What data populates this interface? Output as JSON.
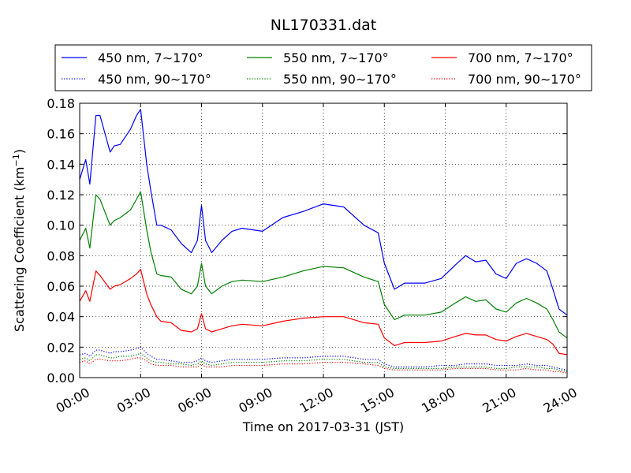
{
  "chart_data": {
    "type": "line",
    "title": "NL170331.dat",
    "xlabel": "Time on 2017-03-31 (JST)",
    "ylabel_main": "Scattering Coefficient (km",
    "ylabel_sup": "−1",
    "ylabel_end": ")",
    "xlim": [
      0,
      24
    ],
    "ylim": [
      0,
      0.18
    ],
    "x_ticks": [
      0,
      3,
      6,
      9,
      12,
      15,
      18,
      21,
      24
    ],
    "x_tick_labels": [
      "00:00",
      "03:00",
      "06:00",
      "09:00",
      "12:00",
      "15:00",
      "18:00",
      "21:00",
      "24:00"
    ],
    "y_ticks": [
      0,
      0.02,
      0.04,
      0.06,
      0.08,
      0.1,
      0.12,
      0.14,
      0.16,
      0.18
    ],
    "y_tick_labels": [
      "0.00",
      "0.02",
      "0.04",
      "0.06",
      "0.08",
      "0.10",
      "0.12",
      "0.14",
      "0.16",
      "0.18"
    ],
    "grid": true,
    "legend_position": "top, above plot",
    "x": [
      0,
      0.3,
      0.5,
      0.8,
      1.0,
      1.5,
      1.7,
      2.0,
      2.5,
      2.8,
      3.0,
      3.3,
      3.5,
      3.8,
      4.0,
      4.5,
      5.0,
      5.5,
      5.8,
      6.0,
      6.2,
      6.5,
      7.0,
      7.5,
      8.0,
      9.0,
      10.0,
      11.0,
      12.0,
      13.0,
      14.0,
      14.7,
      15.0,
      15.5,
      16.0,
      17.0,
      17.8,
      18.5,
      19.0,
      19.5,
      20.0,
      20.5,
      21.0,
      21.5,
      22.0,
      22.5,
      23.0,
      23.3,
      23.6,
      24.0
    ],
    "series": [
      {
        "name": "450 nm, 7∼170°",
        "color": "#0000ff",
        "dash": "solid",
        "values": [
          0.13,
          0.143,
          0.127,
          0.172,
          0.172,
          0.148,
          0.152,
          0.153,
          0.163,
          0.172,
          0.176,
          0.14,
          0.123,
          0.1,
          0.1,
          0.097,
          0.088,
          0.082,
          0.09,
          0.113,
          0.09,
          0.082,
          0.09,
          0.096,
          0.098,
          0.096,
          0.105,
          0.109,
          0.114,
          0.112,
          0.1,
          0.095,
          0.075,
          0.058,
          0.062,
          0.062,
          0.065,
          0.074,
          0.08,
          0.076,
          0.077,
          0.068,
          0.065,
          0.075,
          0.078,
          0.075,
          0.07,
          0.058,
          0.045,
          0.041
        ]
      },
      {
        "name": "550 nm, 7∼170°",
        "color": "#008000",
        "dash": "solid",
        "values": [
          0.09,
          0.098,
          0.085,
          0.12,
          0.117,
          0.1,
          0.103,
          0.105,
          0.11,
          0.117,
          0.122,
          0.097,
          0.083,
          0.068,
          0.067,
          0.066,
          0.058,
          0.055,
          0.06,
          0.075,
          0.06,
          0.055,
          0.06,
          0.063,
          0.064,
          0.063,
          0.066,
          0.07,
          0.073,
          0.072,
          0.066,
          0.063,
          0.048,
          0.038,
          0.041,
          0.041,
          0.043,
          0.049,
          0.053,
          0.05,
          0.051,
          0.045,
          0.043,
          0.049,
          0.052,
          0.049,
          0.045,
          0.038,
          0.03,
          0.026
        ]
      },
      {
        "name": "700 nm, 7∼170°",
        "color": "#ff0000",
        "dash": "solid",
        "values": [
          0.05,
          0.057,
          0.05,
          0.07,
          0.067,
          0.058,
          0.06,
          0.061,
          0.065,
          0.068,
          0.071,
          0.055,
          0.048,
          0.04,
          0.037,
          0.036,
          0.031,
          0.03,
          0.032,
          0.042,
          0.032,
          0.03,
          0.032,
          0.034,
          0.035,
          0.034,
          0.037,
          0.039,
          0.04,
          0.04,
          0.036,
          0.035,
          0.026,
          0.021,
          0.023,
          0.023,
          0.024,
          0.027,
          0.029,
          0.028,
          0.028,
          0.025,
          0.024,
          0.027,
          0.029,
          0.027,
          0.025,
          0.022,
          0.016,
          0.015
        ]
      },
      {
        "name": "450 nm, 90∼170°",
        "color": "#0000ff",
        "dash": "dotted",
        "values": [
          0.015,
          0.016,
          0.014,
          0.018,
          0.018,
          0.016,
          0.017,
          0.017,
          0.018,
          0.019,
          0.02,
          0.016,
          0.014,
          0.012,
          0.012,
          0.011,
          0.01,
          0.01,
          0.011,
          0.013,
          0.011,
          0.01,
          0.011,
          0.012,
          0.012,
          0.012,
          0.013,
          0.013,
          0.014,
          0.014,
          0.012,
          0.012,
          0.009,
          0.007,
          0.007,
          0.007,
          0.008,
          0.008,
          0.009,
          0.009,
          0.009,
          0.008,
          0.008,
          0.008,
          0.009,
          0.008,
          0.008,
          0.007,
          0.006,
          0.005
        ]
      },
      {
        "name": "550 nm, 90∼170°",
        "color": "#008000",
        "dash": "dotted",
        "values": [
          0.012,
          0.013,
          0.011,
          0.015,
          0.015,
          0.013,
          0.013,
          0.014,
          0.014,
          0.015,
          0.016,
          0.013,
          0.011,
          0.01,
          0.01,
          0.009,
          0.009,
          0.008,
          0.009,
          0.011,
          0.009,
          0.008,
          0.009,
          0.01,
          0.01,
          0.01,
          0.011,
          0.011,
          0.012,
          0.012,
          0.01,
          0.01,
          0.007,
          0.006,
          0.006,
          0.006,
          0.006,
          0.007,
          0.007,
          0.007,
          0.007,
          0.006,
          0.006,
          0.007,
          0.007,
          0.007,
          0.006,
          0.006,
          0.005,
          0.004
        ]
      },
      {
        "name": "700 nm, 90∼170°",
        "color": "#ff0000",
        "dash": "dotted",
        "values": [
          0.01,
          0.011,
          0.009,
          0.012,
          0.012,
          0.011,
          0.011,
          0.011,
          0.012,
          0.013,
          0.013,
          0.011,
          0.009,
          0.008,
          0.008,
          0.008,
          0.007,
          0.007,
          0.007,
          0.009,
          0.007,
          0.007,
          0.007,
          0.008,
          0.008,
          0.008,
          0.009,
          0.009,
          0.01,
          0.01,
          0.009,
          0.008,
          0.006,
          0.005,
          0.005,
          0.005,
          0.005,
          0.006,
          0.006,
          0.006,
          0.006,
          0.005,
          0.005,
          0.005,
          0.006,
          0.005,
          0.005,
          0.004,
          0.004,
          0.003
        ]
      }
    ],
    "legend_order": [
      0,
      1,
      2,
      3,
      4,
      5
    ]
  }
}
